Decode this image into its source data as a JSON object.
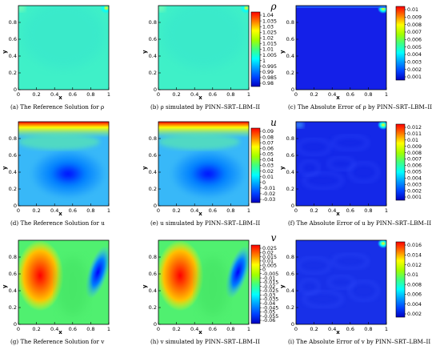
{
  "chart_data": [
    {
      "type": "heatmap",
      "field": "rho",
      "caption": "(a) The Reference Solution for ρ",
      "xlabel": "x",
      "ylabel": "y",
      "xticks": [
        "0",
        "0.2",
        "0.4",
        "0.6",
        "0.8",
        "1"
      ],
      "yticks": [
        "0",
        "0.2",
        "0.4",
        "0.6",
        "0.8"
      ],
      "xlim": [
        0,
        1
      ],
      "ylim": [
        0,
        1
      ],
      "base_value": 1.0,
      "features": [
        {
          "x": 0.01,
          "y": 0.99,
          "value": 1.02
        },
        {
          "x": 0.99,
          "y": 0.99,
          "value": 1.04
        }
      ]
    },
    {
      "type": "heatmap",
      "field": "rho",
      "caption": "(b) ρ simulated by PINN–SRT–LBM–II",
      "xlabel": "x",
      "ylabel": "y",
      "xticks": [
        "0",
        "0.2",
        "0.4",
        "0.6",
        "0.8",
        "1"
      ],
      "yticks": [
        "0",
        "0.2",
        "0.4",
        "0.6",
        "0.8"
      ],
      "xlim": [
        0,
        1
      ],
      "ylim": [
        0,
        1
      ],
      "base_value": 1.0,
      "features": [
        {
          "x": 0.01,
          "y": 0.99,
          "value": 1.02
        },
        {
          "x": 0.99,
          "y": 0.99,
          "value": 1.04
        }
      ]
    },
    {
      "type": "heatmap",
      "field": "rho_error",
      "caption": "(c) The Absolute Error of ρ by PINN–SRT–LBM–II",
      "xlabel": "x",
      "ylabel": "y",
      "xticks": [
        "0",
        "0.2",
        "0.4",
        "0.6",
        "0.8",
        "1"
      ],
      "yticks": [
        "0",
        "0.2",
        "0.4",
        "0.6",
        "0.8"
      ],
      "xlim": [
        0,
        1
      ],
      "ylim": [
        0,
        1
      ],
      "base_value": 0.0008,
      "features": [
        {
          "x": 0.99,
          "y": 0.98,
          "value": 0.007
        }
      ]
    },
    {
      "type": "heatmap",
      "field": "u",
      "caption": "(d) The Reference Solution for u",
      "xlabel": "x",
      "ylabel": "y",
      "xticks": [
        "0",
        "0.2",
        "0.4",
        "0.6",
        "0.8",
        "1"
      ],
      "yticks": [
        "0",
        "0.2",
        "0.4",
        "0.6",
        "0.8"
      ],
      "xlim": [
        0,
        1
      ],
      "ylim": [
        0,
        1
      ],
      "base_value": 0.0,
      "features": [
        {
          "x": 0.5,
          "y": 0.99,
          "value": 0.09
        },
        {
          "x": 0.5,
          "y": 0.3,
          "value": -0.03
        }
      ]
    },
    {
      "type": "heatmap",
      "field": "u",
      "caption": "(e) u simulated by PINN–SRT–LBM–II",
      "xlabel": "x",
      "ylabel": "y",
      "xticks": [
        "0",
        "0.2",
        "0.4",
        "0.6",
        "0.8",
        "1"
      ],
      "yticks": [
        "0",
        "0.2",
        "0.4",
        "0.6",
        "0.8"
      ],
      "xlim": [
        0,
        1
      ],
      "ylim": [
        0,
        1
      ],
      "base_value": 0.0,
      "features": [
        {
          "x": 0.5,
          "y": 0.99,
          "value": 0.09
        },
        {
          "x": 0.5,
          "y": 0.3,
          "value": -0.03
        }
      ]
    },
    {
      "type": "heatmap",
      "field": "u_error",
      "caption": "(f) The Absolute Error of u by PINN–SRT–LBM–II",
      "xlabel": "x",
      "ylabel": "y",
      "xticks": [
        "0",
        "0.2",
        "0.4",
        "0.6",
        "0.8",
        "1"
      ],
      "yticks": [
        "0",
        "0.2",
        "0.4",
        "0.6",
        "0.8"
      ],
      "xlim": [
        0,
        1
      ],
      "ylim": [
        0,
        1
      ],
      "base_value": 0.0012,
      "features": [
        {
          "x": 0.99,
          "y": 0.99,
          "value": 0.007
        },
        {
          "x": 0.01,
          "y": 0.99,
          "value": 0.005
        }
      ]
    },
    {
      "type": "heatmap",
      "field": "v",
      "caption": "(g) The Reference Solution for v",
      "xlabel": "x",
      "ylabel": "y",
      "xticks": [
        "0",
        "0.2",
        "0.4",
        "0.6",
        "0.8",
        "1"
      ],
      "yticks": [
        "0",
        "0.2",
        "0.4",
        "0.6",
        "0.8"
      ],
      "xlim": [
        0,
        1
      ],
      "ylim": [
        0,
        1
      ],
      "base_value": 0.0,
      "features": [
        {
          "x": 0.22,
          "y": 0.6,
          "value": 0.025
        },
        {
          "x": 0.9,
          "y": 0.65,
          "value": -0.06
        }
      ]
    },
    {
      "type": "heatmap",
      "field": "v",
      "caption": "(h) v simulated by PINN–SRT–LBM–II",
      "xlabel": "x",
      "ylabel": "y",
      "xticks": [
        "0",
        "0.2",
        "0.4",
        "0.6",
        "0.8",
        "1"
      ],
      "yticks": [
        "0",
        "0.2",
        "0.4",
        "0.6",
        "0.8"
      ],
      "xlim": [
        0,
        1
      ],
      "ylim": [
        0,
        1
      ],
      "base_value": 0.0,
      "features": [
        {
          "x": 0.22,
          "y": 0.6,
          "value": 0.025
        },
        {
          "x": 0.9,
          "y": 0.65,
          "value": -0.06
        }
      ]
    },
    {
      "type": "heatmap",
      "field": "v_error",
      "caption": "(i) The Absolute Error of v by PINN–SRT–LBM–II",
      "xlabel": "x",
      "ylabel": "y",
      "xticks": [
        "0",
        "0.2",
        "0.4",
        "0.6",
        "0.8",
        "1"
      ],
      "yticks": [
        "0",
        "0.2",
        "0.4",
        "0.6",
        "0.8"
      ],
      "xlim": [
        0,
        1
      ],
      "ylim": [
        0,
        1
      ],
      "base_value": 0.002,
      "features": [
        {
          "x": 0.99,
          "y": 0.99,
          "value": 0.016
        }
      ]
    }
  ],
  "colorbars": [
    {
      "for": "rho",
      "title": "ρ",
      "ticks": [
        "1.04",
        "1.035",
        "1.03",
        "1.025",
        "1.02",
        "1.015",
        "1.01",
        "1.005",
        "1",
        "0.995",
        "0.99",
        "0.985",
        "0.98"
      ]
    },
    {
      "for": "rho_error",
      "title": "",
      "ticks": [
        "0.01",
        "0.009",
        "0.008",
        "0.007",
        "0.006",
        "0.005",
        "0.004",
        "0.003",
        "0.002",
        "0.001"
      ]
    },
    {
      "for": "u",
      "title": "u",
      "ticks": [
        "0.09",
        "0.08",
        "0.07",
        "0.06",
        "0.05",
        "0.04",
        "0.03",
        "0.02",
        "0.01",
        "0",
        "-0.01",
        "-0.02",
        "-0.03"
      ]
    },
    {
      "for": "u_error",
      "title": "",
      "ticks": [
        "0.012",
        "0.011",
        "0.01",
        "0.009",
        "0.008",
        "0.007",
        "0.006",
        "0.005",
        "0.004",
        "0.003",
        "0.002",
        "0.001"
      ]
    },
    {
      "for": "v",
      "title": "v",
      "ticks": [
        "0.025",
        "0.02",
        "0.015",
        "0.01",
        "0.005",
        "0",
        "-0.005",
        "-0.01",
        "-0.015",
        "-0.02",
        "-0.025",
        "-0.03",
        "-0.035",
        "-0.04",
        "-0.045",
        "-0.05",
        "-0.055",
        "-0.06"
      ]
    },
    {
      "for": "v_error",
      "title": "",
      "ticks": [
        "0.016",
        "0.014",
        "0.012",
        "0.01",
        "0.008",
        "0.006",
        "0.004",
        "0.002"
      ]
    }
  ],
  "colors": {
    "jet": [
      "#00007f",
      "#0000ff",
      "#0080ff",
      "#00ffff",
      "#80ff80",
      "#ffff00",
      "#ff8000",
      "#ff0000",
      "#7f0000"
    ]
  }
}
